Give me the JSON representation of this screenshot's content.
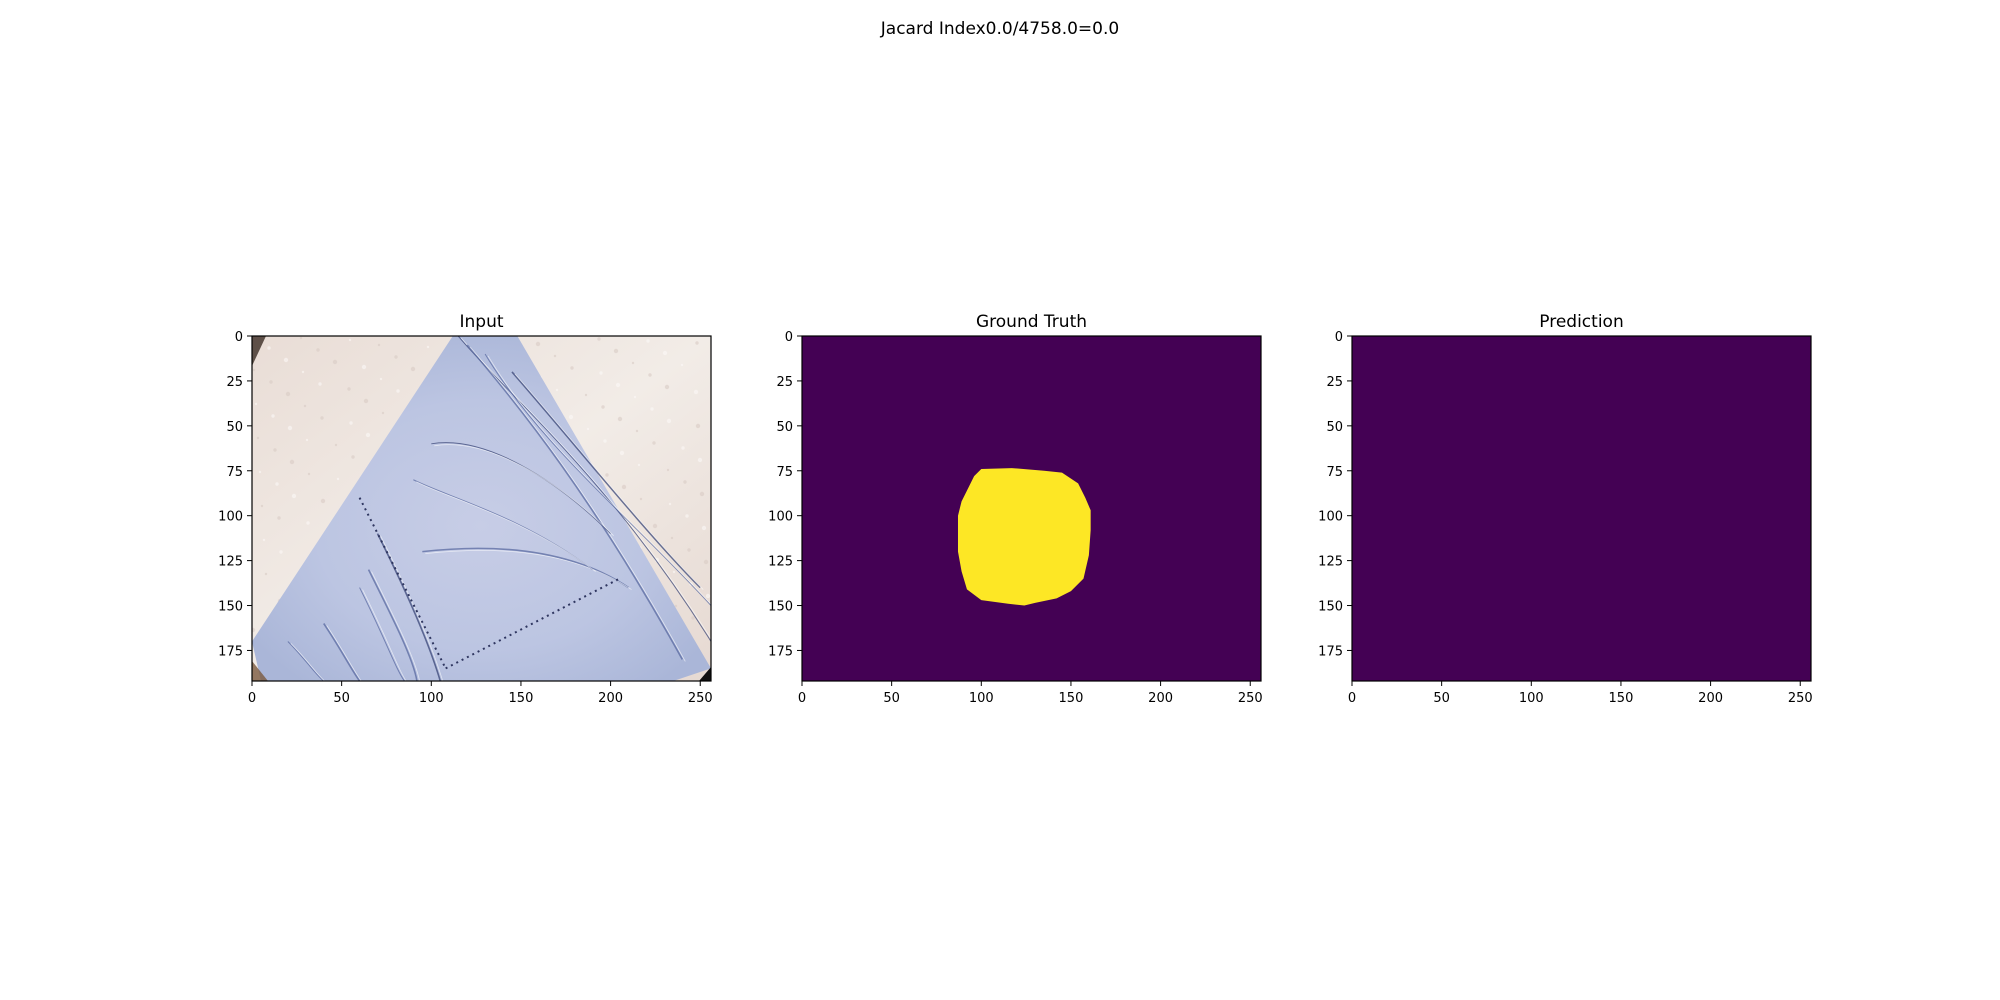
{
  "figure": {
    "suptitle": "Jacard Index0.0/4758.0=0.0"
  },
  "chart_data": [
    {
      "type": "heatmap",
      "title": "Input",
      "content": "rgb image",
      "xlim": [
        0,
        256
      ],
      "ylim": [
        192,
        0
      ],
      "xticks": [
        0,
        50,
        100,
        150,
        200,
        250
      ],
      "yticks": [
        0,
        25,
        50,
        75,
        100,
        125,
        150,
        175
      ]
    },
    {
      "type": "heatmap",
      "title": "Ground Truth",
      "content": "binary mask",
      "xlim": [
        0,
        256
      ],
      "ylim": [
        192,
        0
      ],
      "xticks": [
        0,
        50,
        100,
        150,
        200,
        250
      ],
      "yticks": [
        0,
        25,
        50,
        75,
        100,
        125,
        150,
        175
      ],
      "colormap": {
        "background": "#440154",
        "foreground": "#fde725"
      },
      "region": {
        "label": 1,
        "x_range": [
          87,
          161
        ],
        "y_range": [
          74,
          150
        ],
        "center": [
          123,
          112
        ]
      }
    },
    {
      "type": "heatmap",
      "title": "Prediction",
      "content": "binary mask",
      "xlim": [
        0,
        256
      ],
      "ylim": [
        192,
        0
      ],
      "xticks": [
        0,
        50,
        100,
        150,
        200,
        250
      ],
      "yticks": [
        0,
        25,
        50,
        75,
        100,
        125,
        150,
        175
      ],
      "colormap": {
        "background": "#440154"
      },
      "all_values": 0
    }
  ]
}
